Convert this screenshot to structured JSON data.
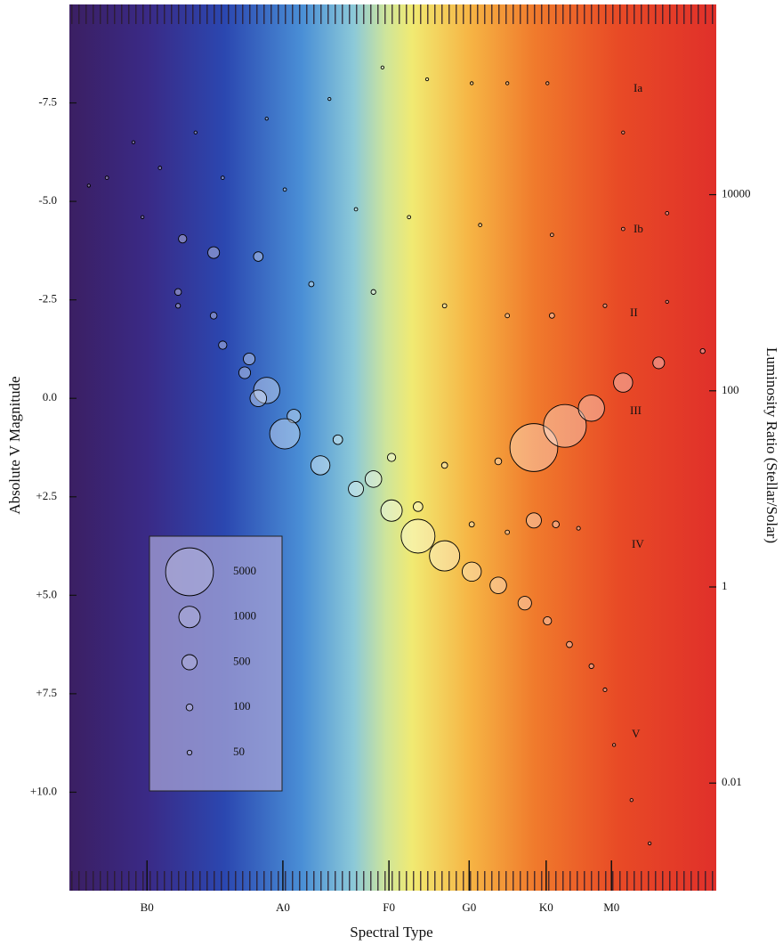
{
  "chart_data": {
    "type": "bubble",
    "x_label": "Spectral Type",
    "y_label": "Absolute V Magnitude",
    "y2_label": "Luminosity Ratio (Stellar/Solar)",
    "xlim": [
      0,
      100
    ],
    "xticks": [
      {
        "value": 12.0,
        "label": "B0"
      },
      {
        "value": 33.0,
        "label": "A0"
      },
      {
        "value": 49.4,
        "label": "F0"
      },
      {
        "value": 61.8,
        "label": "G0"
      },
      {
        "value": 73.7,
        "label": "K0"
      },
      {
        "value": 83.8,
        "label": "M0"
      }
    ],
    "ylim": [
      -10,
      12.5
    ],
    "y_inverted": true,
    "yticks": [
      -7.5,
      {
        "value": -5,
        "label": "-5.0"
      },
      -2.5,
      {
        "value": 0,
        "label": "0.0"
      },
      {
        "value": 2.5,
        "label": "+2.5"
      },
      {
        "value": 5,
        "label": "+5.0"
      },
      {
        "value": 7.5,
        "label": "+7.5"
      },
      {
        "value": 10,
        "label": "+10.0"
      }
    ],
    "y2_log": true,
    "y2lim": [
      0.0008,
      870000
    ],
    "y2ticks": [
      10000,
      100,
      1,
      0.01
    ],
    "size_legend": {
      "values": [
        5000,
        1000,
        500,
        100,
        50
      ]
    },
    "series": [
      {
        "name": "Ia",
        "color": "#000000",
        "x": [
          9.9,
          19.5,
          30.5,
          40.2,
          48.4,
          55.3,
          62.2,
          67.7,
          73.9,
          85.6
        ],
        "values": [
          -6.5,
          -6.75,
          -7.1,
          -7.6,
          -8.4,
          -8.1,
          -8.0,
          -8.0,
          -8.0,
          -6.75
        ],
        "sizes": [
          20,
          20,
          20,
          20,
          20,
          20,
          20,
          20,
          20,
          20
        ]
      },
      {
        "name": "Ib",
        "color": "#000000",
        "x": [
          5.8,
          14.0,
          23.7,
          33.3,
          44.3,
          52.5,
          63.5,
          74.6,
          85.6,
          92.4
        ],
        "values": [
          -5.6,
          -5.85,
          -5.6,
          -5.3,
          -4.8,
          -4.6,
          -4.4,
          -4.15,
          -4.3,
          -4.7
        ],
        "sizes": [
          25,
          25,
          25,
          25,
          25,
          25,
          25,
          25,
          25,
          25
        ]
      },
      {
        "name": "II",
        "color": "#000000",
        "x": [
          3.0,
          11.3,
          17.5,
          22.3,
          29.2,
          37.4,
          47.0,
          58.0,
          67.7,
          74.6,
          82.8,
          92.4
        ],
        "values": [
          -5.4,
          -4.6,
          -4.05,
          -3.7,
          -3.6,
          -2.9,
          -2.7,
          -2.35,
          -2.1,
          -2.1,
          -2.35,
          -2.45
        ],
        "sizes": [
          20,
          20,
          150,
          300,
          200,
          60,
          50,
          40,
          40,
          60,
          30,
          20
        ]
      },
      {
        "name": "III",
        "color": "#000000",
        "x": [
          16.8,
          22.3,
          27.8,
          30.5,
          34.7,
          41.5,
          49.8,
          58.0,
          66.3,
          71.8,
          76.6,
          80.7,
          85.6,
          91.1,
          97.9
        ],
        "values": [
          -2.7,
          -2.1,
          -1.0,
          -0.2,
          0.45,
          1.05,
          1.5,
          1.7,
          1.6,
          1.25,
          0.7,
          0.25,
          -0.4,
          -0.9,
          -1.2
        ],
        "sizes": [
          100,
          100,
          300,
          1500,
          400,
          200,
          150,
          80,
          100,
          5000,
          4000,
          1500,
          800,
          300,
          50
        ]
      },
      {
        "name": "IV",
        "color": "#000000",
        "x": [
          47.0,
          53.9,
          62.2,
          67.7,
          71.8,
          75.2,
          78.7
        ],
        "values": [
          2.05,
          2.75,
          3.2,
          3.4,
          3.1,
          3.2,
          3.3
        ],
        "sizes": [
          600,
          200,
          60,
          40,
          500,
          100,
          30
        ]
      },
      {
        "name": "V",
        "color": "#000000",
        "x": [
          16.8,
          23.7,
          27.1,
          29.2,
          33.3,
          38.8,
          44.3,
          49.8,
          53.9,
          58.0,
          62.2,
          66.3,
          70.4,
          73.9,
          77.3,
          80.7,
          82.8,
          84.2,
          86.9,
          89.7
        ],
        "values": [
          -2.35,
          -1.35,
          -0.65,
          0.0,
          0.9,
          1.7,
          2.3,
          2.85,
          3.5,
          4.0,
          4.4,
          4.75,
          5.2,
          5.65,
          6.25,
          6.8,
          7.4,
          8.8,
          10.2,
          11.3
        ],
        "sizes": [
          50,
          150,
          300,
          600,
          2000,
          800,
          500,
          1000,
          2500,
          2000,
          800,
          600,
          400,
          150,
          80,
          50,
          30,
          20,
          20,
          20
        ]
      }
    ]
  }
}
